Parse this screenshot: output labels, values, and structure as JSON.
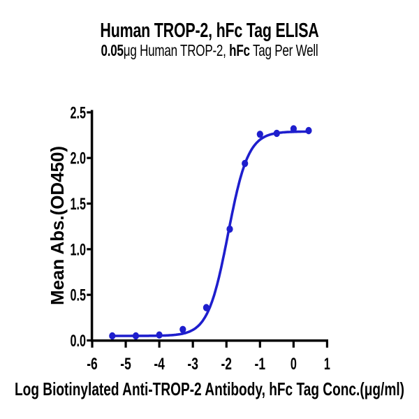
{
  "page": {
    "background": "#ffffff"
  },
  "header": {
    "title": "Human TROP-2, hFc Tag ELISA",
    "subtitle": "0.05μg Human TROP-2, hFc Tag Per Well",
    "subtitle_parts": [
      {
        "text": "0.05",
        "bold": true
      },
      {
        "text": "μg Human TROP-2, ",
        "bold": false
      },
      {
        "text": "hFc",
        "bold": true
      },
      {
        "text": " Tag Per Well",
        "bold": false
      }
    ]
  },
  "chart_data": {
    "type": "scatter",
    "title": "Human TROP-2, hFc Tag ELISA",
    "subtitle": "0.05μg Human TROP-2, hFc Tag Per Well",
    "xlabel": "Log Biotinylated Anti-TROP-2 Antibody, hFc Tag Conc.(μg/ml)",
    "ylabel": "Mean Abs.(OD450)",
    "xlim": [
      -6,
      1
    ],
    "ylim": [
      0,
      2.5
    ],
    "x_tick_labels": [
      "-6",
      "-5",
      "-4",
      "-3",
      "-2",
      "-1",
      "0",
      "1"
    ],
    "y_tick_labels": [
      "0.0",
      "0.5",
      "1.0",
      "1.5",
      "2.0",
      "2.5"
    ],
    "x_ticks": [
      -6,
      -5,
      -4,
      -3,
      -2,
      -1,
      0,
      1
    ],
    "y_ticks": [
      0,
      0.5,
      1,
      1.5,
      2,
      2.5
    ],
    "grid": false,
    "legend": null,
    "axis_color": "#000000",
    "series": [
      {
        "name": "Human TROP-2, hFc Tag ELISA",
        "color": "#1e1ecd",
        "marker": "circle",
        "points": [
          {
            "x": -5.4,
            "y": 0.05
          },
          {
            "x": -4.7,
            "y": 0.05
          },
          {
            "x": -4.0,
            "y": 0.06
          },
          {
            "x": -3.3,
            "y": 0.12
          },
          {
            "x": -2.6,
            "y": 0.36
          },
          {
            "x": -1.9,
            "y": 1.22
          },
          {
            "x": -1.45,
            "y": 1.94
          },
          {
            "x": -1.0,
            "y": 2.26
          },
          {
            "x": -0.5,
            "y": 2.27
          },
          {
            "x": 0.0,
            "y": 2.32
          },
          {
            "x": 0.45,
            "y": 2.3
          }
        ],
        "fit_curve": {
          "model": "4PL",
          "bottom": 0.05,
          "top": 2.29,
          "logEC50": -1.95,
          "hill": 1.45,
          "x_range": [
            -5.4,
            0.45
          ]
        }
      }
    ]
  }
}
